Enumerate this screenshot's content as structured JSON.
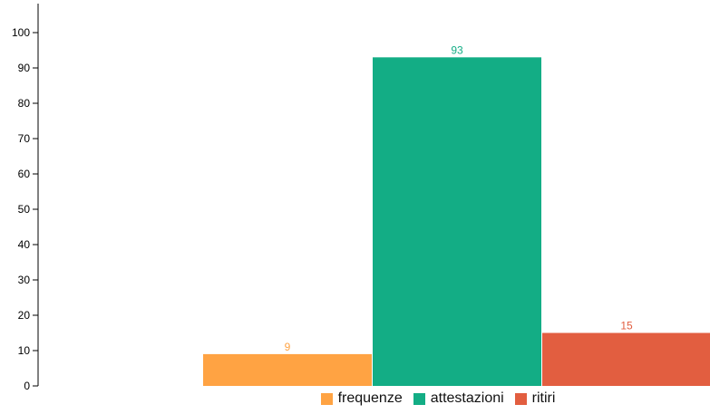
{
  "chart_data": {
    "type": "bar",
    "categories": [
      "frequenze",
      "attestazioni",
      "ritiri"
    ],
    "values": [
      9,
      93,
      15
    ],
    "colors": [
      "#ffa343",
      "#13ad85",
      "#e25e40"
    ],
    "title": "",
    "xlabel": "",
    "ylabel": "",
    "ylim": [
      0,
      100
    ],
    "yticks": [
      "0",
      "10",
      "20",
      "30",
      "40",
      "50",
      "60",
      "70",
      "80",
      "90",
      "100"
    ],
    "data_labels": [
      "9",
      "93",
      "15"
    ],
    "grid": false,
    "legend_position": "bottom"
  },
  "legend": {
    "items": [
      {
        "label": "frequenze",
        "color": "#ffa343"
      },
      {
        "label": "attestazioni",
        "color": "#13ad85"
      },
      {
        "label": "ritiri",
        "color": "#e25e40"
      }
    ]
  }
}
